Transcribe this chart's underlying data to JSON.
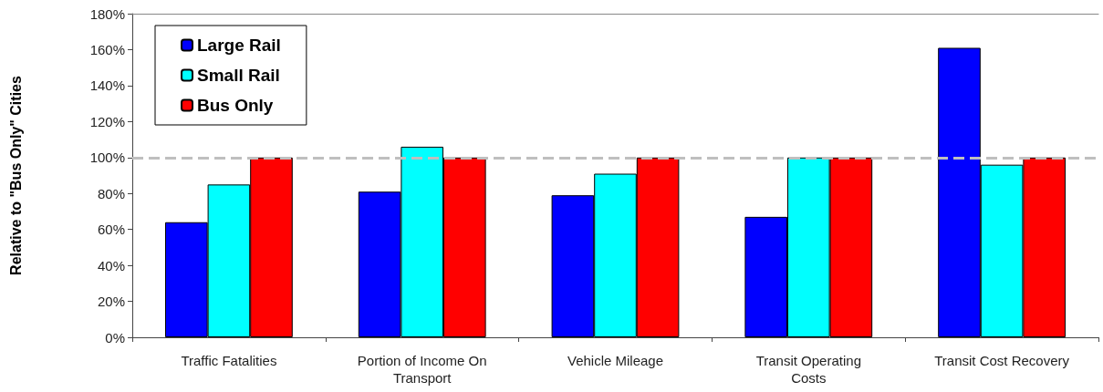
{
  "chart_data": {
    "type": "bar",
    "ylabel": "Relative to \"Bus Only\" Cities",
    "categories": [
      "Traffic Fatalities",
      "Portion of Income On Transport",
      "Vehicle Mileage",
      "Transit Operating Costs",
      "Transit Cost Recovery"
    ],
    "series": [
      {
        "name": "Large Rail",
        "color": "#0000ff",
        "values": [
          64,
          81,
          79,
          67,
          161
        ]
      },
      {
        "name": "Small Rail",
        "color": "#00ffff",
        "values": [
          85,
          106,
          91,
          100,
          96
        ]
      },
      {
        "name": "Bus Only",
        "color": "#ff0000",
        "values": [
          100,
          100,
          100,
          100,
          100
        ]
      }
    ],
    "ylim": [
      0,
      180
    ],
    "yticks": [
      {
        "value": 0,
        "label": "0%"
      },
      {
        "value": 20,
        "label": "20%"
      },
      {
        "value": 40,
        "label": "40%"
      },
      {
        "value": 60,
        "label": "60%"
      },
      {
        "value": 80,
        "label": "80%"
      },
      {
        "value": 100,
        "label": "100%"
      },
      {
        "value": 120,
        "label": "120%"
      },
      {
        "value": 140,
        "label": "140%"
      },
      {
        "value": 160,
        "label": "160%"
      },
      {
        "value": 180,
        "label": "180%"
      }
    ],
    "ref_lines": [
      {
        "axis": "y",
        "value": 100,
        "color": "#bfbfbf",
        "line_style": "dashed"
      }
    ],
    "grid": false,
    "legend": "top left"
  }
}
